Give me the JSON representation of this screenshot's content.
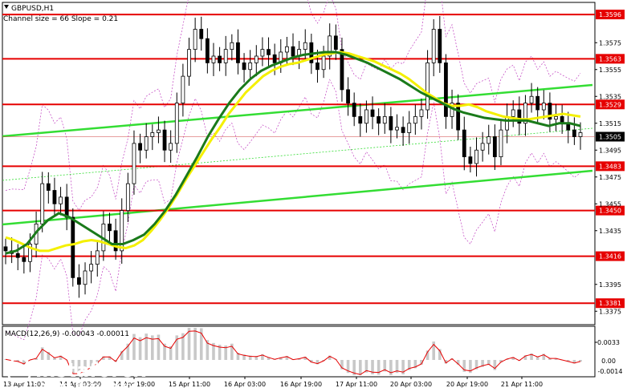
{
  "symbol_header": "GBPUSD,H1",
  "channel_header": "Channel size = 66 Slope = 0.21",
  "macd_header": "MACD(12,26,9) -0.00043 -0.00011",
  "watermark": {
    "brand": "instaforex",
    "tagline": "Instant Forex Trading"
  },
  "colors": {
    "level_line": "#e60000",
    "price_tag_red": "#e60000",
    "price_tag_black": "#000000",
    "ma_fast": "#f4f000",
    "ma_slow": "#1a7a1a",
    "trendline": "#33dd33",
    "envelope": "#c040c0",
    "candles": "#000000",
    "macd_hist": "#c8c8c8",
    "macd_signal": "#e60000"
  },
  "chart_data": {
    "type": "candlestick",
    "ylim": [
      1.3365,
      1.3605
    ],
    "price_axis_ticks": [
      "1.3575",
      "1.3555",
      "1.3535",
      "1.3515",
      "1.3495",
      "1.3475",
      "1.3455",
      "1.3435",
      "1.3395",
      "1.3375"
    ],
    "x_tick_labels": [
      "13 Apr 11:00",
      "14 Apr 03:00",
      "14 Apr 19:00",
      "15 Apr 11:00",
      "16 Apr 03:00",
      "16 Apr 19:00",
      "17 Apr 11:00",
      "20 Apr 03:00",
      "20 Apr 19:00",
      "21 Apr 11:00"
    ],
    "levels": [
      {
        "label": "1.3596",
        "value": 1.3596
      },
      {
        "label": "1.3563",
        "value": 1.3563
      },
      {
        "label": "1.3529",
        "value": 1.3529
      },
      {
        "label": "1.3483",
        "value": 1.3483
      },
      {
        "label": "1.3450",
        "value": 1.345
      },
      {
        "label": "1.3416",
        "value": 1.3416
      },
      {
        "label": "1.3381",
        "value": 1.3381
      }
    ],
    "current_price": {
      "label": "1.3505",
      "value": 1.3505
    },
    "close": [
      1.342,
      1.3418,
      1.3415,
      1.3412,
      1.3425,
      1.344,
      1.347,
      1.3465,
      1.3455,
      1.346,
      1.3445,
      1.34,
      1.3395,
      1.3405,
      1.341,
      1.342,
      1.344,
      1.3435,
      1.342,
      1.345,
      1.347,
      1.35,
      1.3495,
      1.3505,
      1.3508,
      1.351,
      1.3495,
      1.35,
      1.353,
      1.355,
      1.357,
      1.3585,
      1.3578,
      1.356,
      1.3565,
      1.356,
      1.357,
      1.3575,
      1.356,
      1.3555,
      1.356,
      1.3565,
      1.357,
      1.3566,
      1.356,
      1.3568,
      1.3572,
      1.3565,
      1.357,
      1.3575,
      1.356,
      1.3555,
      1.3565,
      1.358,
      1.357,
      1.354,
      1.353,
      1.352,
      1.3515,
      1.3525,
      1.352,
      1.3515,
      1.352,
      1.351,
      1.3512,
      1.3508,
      1.3515,
      1.352,
      1.3525,
      1.356,
      1.3585,
      1.356,
      1.352,
      1.353,
      1.351,
      1.349,
      1.3485,
      1.3495,
      1.35,
      1.3505,
      1.349,
      1.351,
      1.352,
      1.3525,
      1.3515,
      1.353,
      1.3535,
      1.3525,
      1.353,
      1.3518,
      1.352,
      1.3515,
      1.351,
      1.3505,
      1.3508
    ],
    "ma_fast": [
      1.343,
      1.3428,
      1.3425,
      1.3422,
      1.342,
      1.342,
      1.3422,
      1.3424,
      1.3425,
      1.3427,
      1.3428,
      1.3427,
      1.3425,
      1.3423,
      1.3422,
      1.3424,
      1.3428,
      1.3435,
      1.3443,
      1.3452,
      1.3462,
      1.3473,
      1.3483,
      1.3493,
      1.3503,
      1.3512,
      1.3522,
      1.353,
      1.3538,
      1.3544,
      1.355,
      1.3554,
      1.3557,
      1.3559,
      1.356,
      1.3562,
      1.3564,
      1.3566,
      1.3567,
      1.3568,
      1.3567,
      1.3565,
      1.3563,
      1.3561,
      1.3558,
      1.3555,
      1.3552,
      1.3548,
      1.3543,
      1.3538,
      1.3534,
      1.353,
      1.3528,
      1.3528,
      1.3529,
      1.3527,
      1.3524,
      1.3522,
      1.352,
      1.3519,
      1.3518,
      1.3518,
      1.3519,
      1.352,
      1.3521,
      1.3522,
      1.3521,
      1.352
    ],
    "ma_slow": [
      1.3418,
      1.342,
      1.3425,
      1.3435,
      1.3443,
      1.3448,
      1.3445,
      1.344,
      1.3435,
      1.343,
      1.3425,
      1.3425,
      1.3428,
      1.3432,
      1.344,
      1.345,
      1.3462,
      1.3476,
      1.349,
      1.3505,
      1.3518,
      1.353,
      1.354,
      1.3548,
      1.3554,
      1.3558,
      1.3561,
      1.3564,
      1.3566,
      1.3567,
      1.3568,
      1.3568,
      1.3566,
      1.3563,
      1.356,
      1.3556,
      1.3552,
      1.3548,
      1.3543,
      1.3538,
      1.3534,
      1.353,
      1.3526,
      1.3523,
      1.3521,
      1.3519,
      1.3518,
      1.3517,
      1.3517,
      1.3517,
      1.3515,
      1.3513,
      1.3515,
      1.3515,
      1.3513
    ]
  }
}
